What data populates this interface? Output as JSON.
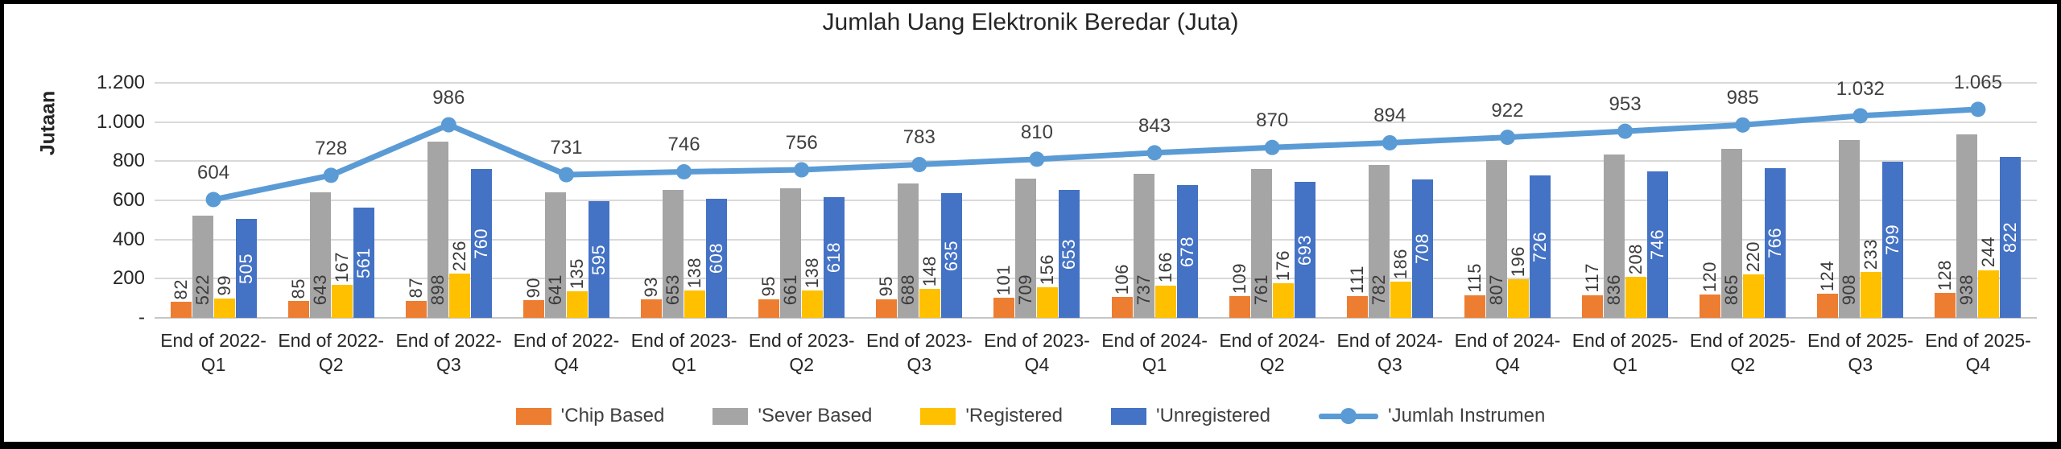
{
  "title": "Jumlah Uang Elektronik Beredar (Juta)",
  "y_axis": {
    "label": "Jutaan",
    "ticks": [
      {
        "label": "1.200",
        "value": 1200
      },
      {
        "label": "1.000",
        "value": 1000
      },
      {
        "label": "800",
        "value": 800
      },
      {
        "label": "600",
        "value": 600
      },
      {
        "label": "400",
        "value": 400
      },
      {
        "label": "200",
        "value": 200
      },
      {
        "label": "-",
        "value": 0
      }
    ]
  },
  "x_axis": {
    "categories_two_line": [
      [
        "End of 2022-",
        "Q1"
      ],
      [
        "End of 2022-",
        "Q2"
      ],
      [
        "End of 2022-",
        "Q3"
      ],
      [
        "End of 2022-",
        "Q4"
      ],
      [
        "End of 2023-",
        "Q1"
      ],
      [
        "End of 2023-",
        "Q2"
      ],
      [
        "End of 2023-",
        "Q3"
      ],
      [
        "End of 2023-",
        "Q4"
      ],
      [
        "End of 2024-",
        "Q1"
      ],
      [
        "End of 2024-",
        "Q2"
      ],
      [
        "End of 2024-",
        "Q3"
      ],
      [
        "End of 2024-",
        "Q4"
      ],
      [
        "End of 2025-",
        "Q1"
      ],
      [
        "End of 2025-",
        "Q2"
      ],
      [
        "End of 2025-",
        "Q3"
      ],
      [
        "End of 2025-",
        "Q4"
      ]
    ]
  },
  "colors": {
    "chip_based": "#ED7D31",
    "sever_based": "#A5A5A5",
    "registered": "#FFC000",
    "unregistered": "#4472C4",
    "line": "#5B9BD5",
    "gridline": "#D9D9D9",
    "axis_line": "#C6C6C6",
    "dark_label": "#3B3B3B",
    "white_label": "#FFFFFF",
    "text": "#262626"
  },
  "chart_data": {
    "type": "bar",
    "combo": "clustered-bar-with-line-overlay",
    "title": "Jumlah Uang Elektronik Beredar (Juta)",
    "xlabel": "",
    "ylabel": "Jutaan",
    "ylim": [
      0,
      1200
    ],
    "grid": true,
    "legend_position": "bottom",
    "categories": [
      "End of 2022-Q1",
      "End of 2022-Q2",
      "End of 2022-Q3",
      "End of 2022-Q4",
      "End of 2023-Q1",
      "End of 2023-Q2",
      "End of 2023-Q3",
      "End of 2023-Q4",
      "End of 2024-Q1",
      "End of 2024-Q2",
      "End of 2024-Q3",
      "End of 2024-Q4",
      "End of 2025-Q1",
      "End of 2025-Q2",
      "End of 2025-Q3",
      "End of 2025-Q4"
    ],
    "series": [
      {
        "name": "'Chip Based",
        "type": "bar",
        "color": "#ED7D31",
        "label_position": "outside-end",
        "label_color": "#3B3B3B",
        "values": [
          82,
          85,
          87,
          90,
          93,
          95,
          95,
          101,
          106,
          109,
          111,
          115,
          117,
          120,
          124,
          128
        ]
      },
      {
        "name": "'Sever Based",
        "type": "bar",
        "color": "#A5A5A5",
        "label_position": "inside-base",
        "label_color": "#3B3B3B",
        "values": [
          522,
          643,
          898,
          641,
          653,
          661,
          688,
          709,
          737,
          761,
          782,
          807,
          836,
          865,
          908,
          938
        ]
      },
      {
        "name": "'Registered",
        "type": "bar",
        "color": "#FFC000",
        "label_position": "outside-end",
        "label_color": "#3B3B3B",
        "values": [
          99,
          167,
          226,
          135,
          138,
          138,
          148,
          156,
          166,
          176,
          186,
          196,
          208,
          220,
          233,
          244
        ]
      },
      {
        "name": "'Unregistered",
        "type": "bar",
        "color": "#4472C4",
        "label_position": "center",
        "label_color": "#FFFFFF",
        "values": [
          505,
          561,
          760,
          595,
          608,
          618,
          635,
          653,
          678,
          693,
          708,
          726,
          746,
          766,
          799,
          822
        ]
      },
      {
        "name": "'Jumlah Instrumen",
        "type": "line",
        "color": "#5B9BD5",
        "label_color": "#404040",
        "values": [
          604,
          728,
          986,
          731,
          746,
          756,
          783,
          810,
          843,
          870,
          894,
          922,
          953,
          985,
          1032,
          1065
        ],
        "value_labels": [
          "604",
          "728",
          "986",
          "731",
          "746",
          "756",
          "783",
          "810",
          "843",
          "870",
          "894",
          "922",
          "953",
          "985",
          "1.032",
          "1.065"
        ]
      }
    ]
  }
}
